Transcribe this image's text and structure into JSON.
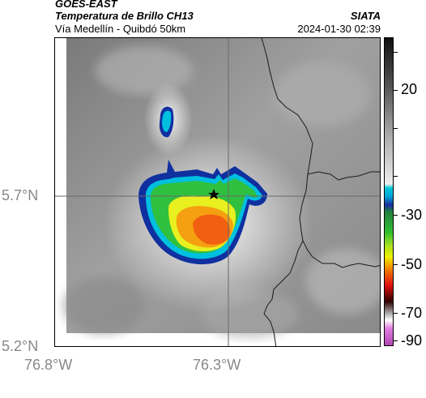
{
  "header": {
    "satellite": "GOES-EAST",
    "product": "Temperatura de Brillo CH13",
    "location": "Vía Medellín - Quibdó 50km",
    "brand": "SIATA",
    "timestamp": "2024-01-30 02:39"
  },
  "axes": {
    "lat_labels": [
      "5.7°N",
      "5.2°N"
    ],
    "lon_labels": [
      "76.8°W",
      "76.3°W"
    ]
  },
  "colorbar": {
    "labels": [
      "20",
      "-30",
      "-50",
      "-70",
      "-90"
    ],
    "colors": {
      "warm_top": "#111111",
      "warm_bottom": "#ffffff",
      "cyan": "#00c8d8",
      "blue": "#1a2aa0",
      "green": "#30c030",
      "yellow": "#f0f000",
      "orange": "#f08000",
      "red": "#e01010",
      "dark": "#300000",
      "magenta": "#b040b0"
    }
  },
  "map": {
    "marker": "star-icon",
    "cloud_colors": [
      "#1030a0",
      "#00c0e0",
      "#30c040",
      "#e8f020",
      "#f5a010",
      "#f06010"
    ]
  }
}
